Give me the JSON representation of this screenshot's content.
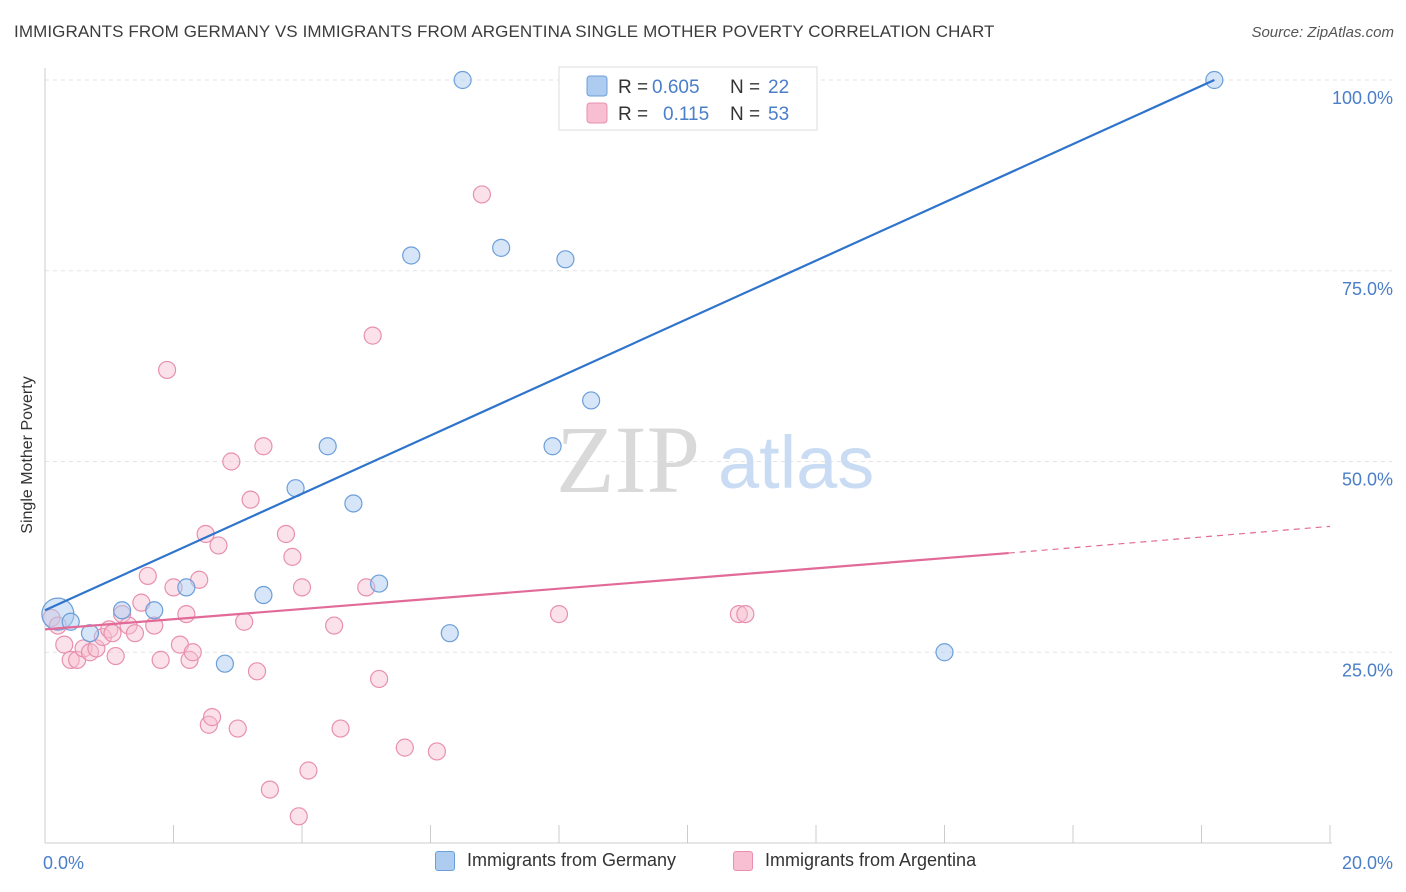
{
  "header": {
    "title": "IMMIGRANTS FROM GERMANY VS IMMIGRANTS FROM ARGENTINA SINGLE MOTHER POVERTY CORRELATION CHART",
    "source": "Source: ZipAtlas.com"
  },
  "watermark": {
    "zip": "ZIP",
    "atlas": "atlas"
  },
  "legend_stats": [
    {
      "r_label": "R =",
      "r_value": "0.605",
      "n_label": "N =",
      "n_value": "22"
    },
    {
      "r_label": "R =",
      "r_value": "0.115",
      "n_label": "N =",
      "n_value": "53"
    }
  ],
  "colors": {
    "germany_fill": "#aecbf0",
    "germany_stroke": "#6c9fd9",
    "germany_line": "#2f74cc",
    "argentina_fill": "#f7bfd1",
    "argentina_stroke": "#e890ae",
    "argentina_line": "#e26a98",
    "axis_text": "#4a7ec9"
  },
  "chart_data": {
    "type": "scatter",
    "title": "IMMIGRANTS FROM GERMANY VS IMMIGRANTS FROM ARGENTINA SINGLE MOTHER POVERTY CORRELATION CHART",
    "xlabel": "",
    "ylabel": "Single Mother Poverty",
    "xlim": [
      0,
      20
    ],
    "ylim": [
      0,
      105
    ],
    "x_tick_labels": [
      "0.0%",
      "20.0%"
    ],
    "y_ticks": [
      25,
      50,
      75,
      100
    ],
    "y_tick_labels": [
      "25.0%",
      "50.0%",
      "75.0%",
      "100.0%"
    ],
    "grid": true,
    "legend_position": "top-center",
    "series": [
      {
        "name": "Immigrants from Germany",
        "r": 0.605,
        "n": 22,
        "trend": {
          "x0": 0.0,
          "y0": 30.5,
          "x1": 18.2,
          "y1": 100.0,
          "dashed_to_x": 18.2
        },
        "points": [
          {
            "x": 0.2,
            "y": 30.0,
            "big": true
          },
          {
            "x": 0.7,
            "y": 27.5
          },
          {
            "x": 1.2,
            "y": 30.5
          },
          {
            "x": 1.7,
            "y": 30.5
          },
          {
            "x": 2.2,
            "y": 33.5
          },
          {
            "x": 2.8,
            "y": 23.5
          },
          {
            "x": 3.4,
            "y": 32.5
          },
          {
            "x": 3.9,
            "y": 46.5
          },
          {
            "x": 4.4,
            "y": 52.0
          },
          {
            "x": 4.8,
            "y": 44.5
          },
          {
            "x": 5.2,
            "y": 34.0
          },
          {
            "x": 5.7,
            "y": 77.0
          },
          {
            "x": 6.3,
            "y": 27.5
          },
          {
            "x": 6.5,
            "y": 100.0
          },
          {
            "x": 7.1,
            "y": 78.0
          },
          {
            "x": 7.9,
            "y": 52.0
          },
          {
            "x": 8.1,
            "y": 76.5
          },
          {
            "x": 8.5,
            "y": 58.0
          },
          {
            "x": 9.0,
            "y": 100.0
          },
          {
            "x": 14.0,
            "y": 25.0
          },
          {
            "x": 18.2,
            "y": 100.0
          },
          {
            "x": 0.4,
            "y": 29.0
          }
        ]
      },
      {
        "name": "Immigrants from Argentina",
        "r": 0.115,
        "n": 53,
        "trend": {
          "x0": 0.0,
          "y0": 28.0,
          "x1": 15.0,
          "y1": 38.0,
          "dashed_to_x": 20.0,
          "dashed_y": 41.5
        },
        "points": [
          {
            "x": 0.1,
            "y": 29.5
          },
          {
            "x": 0.2,
            "y": 28.5
          },
          {
            "x": 0.3,
            "y": 26.0
          },
          {
            "x": 0.4,
            "y": 24.0
          },
          {
            "x": 0.5,
            "y": 24.0
          },
          {
            "x": 0.6,
            "y": 25.5
          },
          {
            "x": 0.7,
            "y": 25.0
          },
          {
            "x": 0.8,
            "y": 25.5
          },
          {
            "x": 0.9,
            "y": 27.0
          },
          {
            "x": 1.0,
            "y": 28.0
          },
          {
            "x": 1.05,
            "y": 27.5
          },
          {
            "x": 1.1,
            "y": 24.5
          },
          {
            "x": 1.2,
            "y": 30.0
          },
          {
            "x": 1.3,
            "y": 28.5
          },
          {
            "x": 1.4,
            "y": 27.5
          },
          {
            "x": 1.5,
            "y": 31.5
          },
          {
            "x": 1.6,
            "y": 35.0
          },
          {
            "x": 1.7,
            "y": 28.5
          },
          {
            "x": 1.8,
            "y": 24.0
          },
          {
            "x": 1.9,
            "y": 62.0
          },
          {
            "x": 2.0,
            "y": 33.5
          },
          {
            "x": 2.1,
            "y": 26.0
          },
          {
            "x": 2.2,
            "y": 30.0
          },
          {
            "x": 2.25,
            "y": 24.0
          },
          {
            "x": 2.3,
            "y": 25.0
          },
          {
            "x": 2.4,
            "y": 34.5
          },
          {
            "x": 2.5,
            "y": 40.5
          },
          {
            "x": 2.55,
            "y": 15.5
          },
          {
            "x": 2.6,
            "y": 16.5
          },
          {
            "x": 2.7,
            "y": 39.0
          },
          {
            "x": 2.9,
            "y": 50.0
          },
          {
            "x": 3.0,
            "y": 15.0
          },
          {
            "x": 3.1,
            "y": 29.0
          },
          {
            "x": 3.2,
            "y": 45.0
          },
          {
            "x": 3.3,
            "y": 22.5
          },
          {
            "x": 3.4,
            "y": 52.0
          },
          {
            "x": 3.5,
            "y": 7.0
          },
          {
            "x": 3.75,
            "y": 40.5
          },
          {
            "x": 3.85,
            "y": 37.5
          },
          {
            "x": 3.95,
            "y": 3.5
          },
          {
            "x": 4.0,
            "y": 33.5
          },
          {
            "x": 4.1,
            "y": 9.5
          },
          {
            "x": 4.5,
            "y": 28.5
          },
          {
            "x": 4.6,
            "y": 15.0
          },
          {
            "x": 5.0,
            "y": 33.5
          },
          {
            "x": 5.1,
            "y": 66.5
          },
          {
            "x": 5.2,
            "y": 21.5
          },
          {
            "x": 5.6,
            "y": 12.5
          },
          {
            "x": 6.1,
            "y": 12.0
          },
          {
            "x": 6.8,
            "y": 85.0
          },
          {
            "x": 8.0,
            "y": 30.0
          },
          {
            "x": 10.8,
            "y": 30.0
          },
          {
            "x": 10.9,
            "y": 30.0
          }
        ]
      }
    ]
  }
}
